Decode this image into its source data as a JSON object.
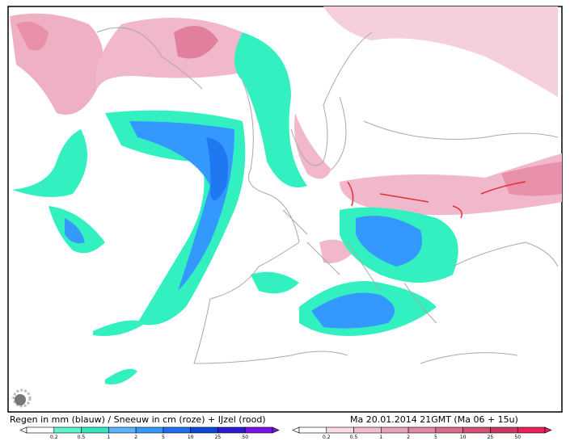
{
  "caption": {
    "title": "Regen in mm (blauw) / Sneeuw in cm (roze) + IJzel (rood)",
    "time": "Ma 20.01.2014 21GMT (Ma 06 + 15u)"
  },
  "legend": {
    "rain": {
      "ticks": [
        0.2,
        0.5,
        1,
        2,
        5,
        10,
        25,
        50
      ]
    },
    "snow": {
      "ticks": [
        0.2,
        0.5,
        1,
        2,
        5,
        10,
        25,
        50
      ]
    }
  }
}
